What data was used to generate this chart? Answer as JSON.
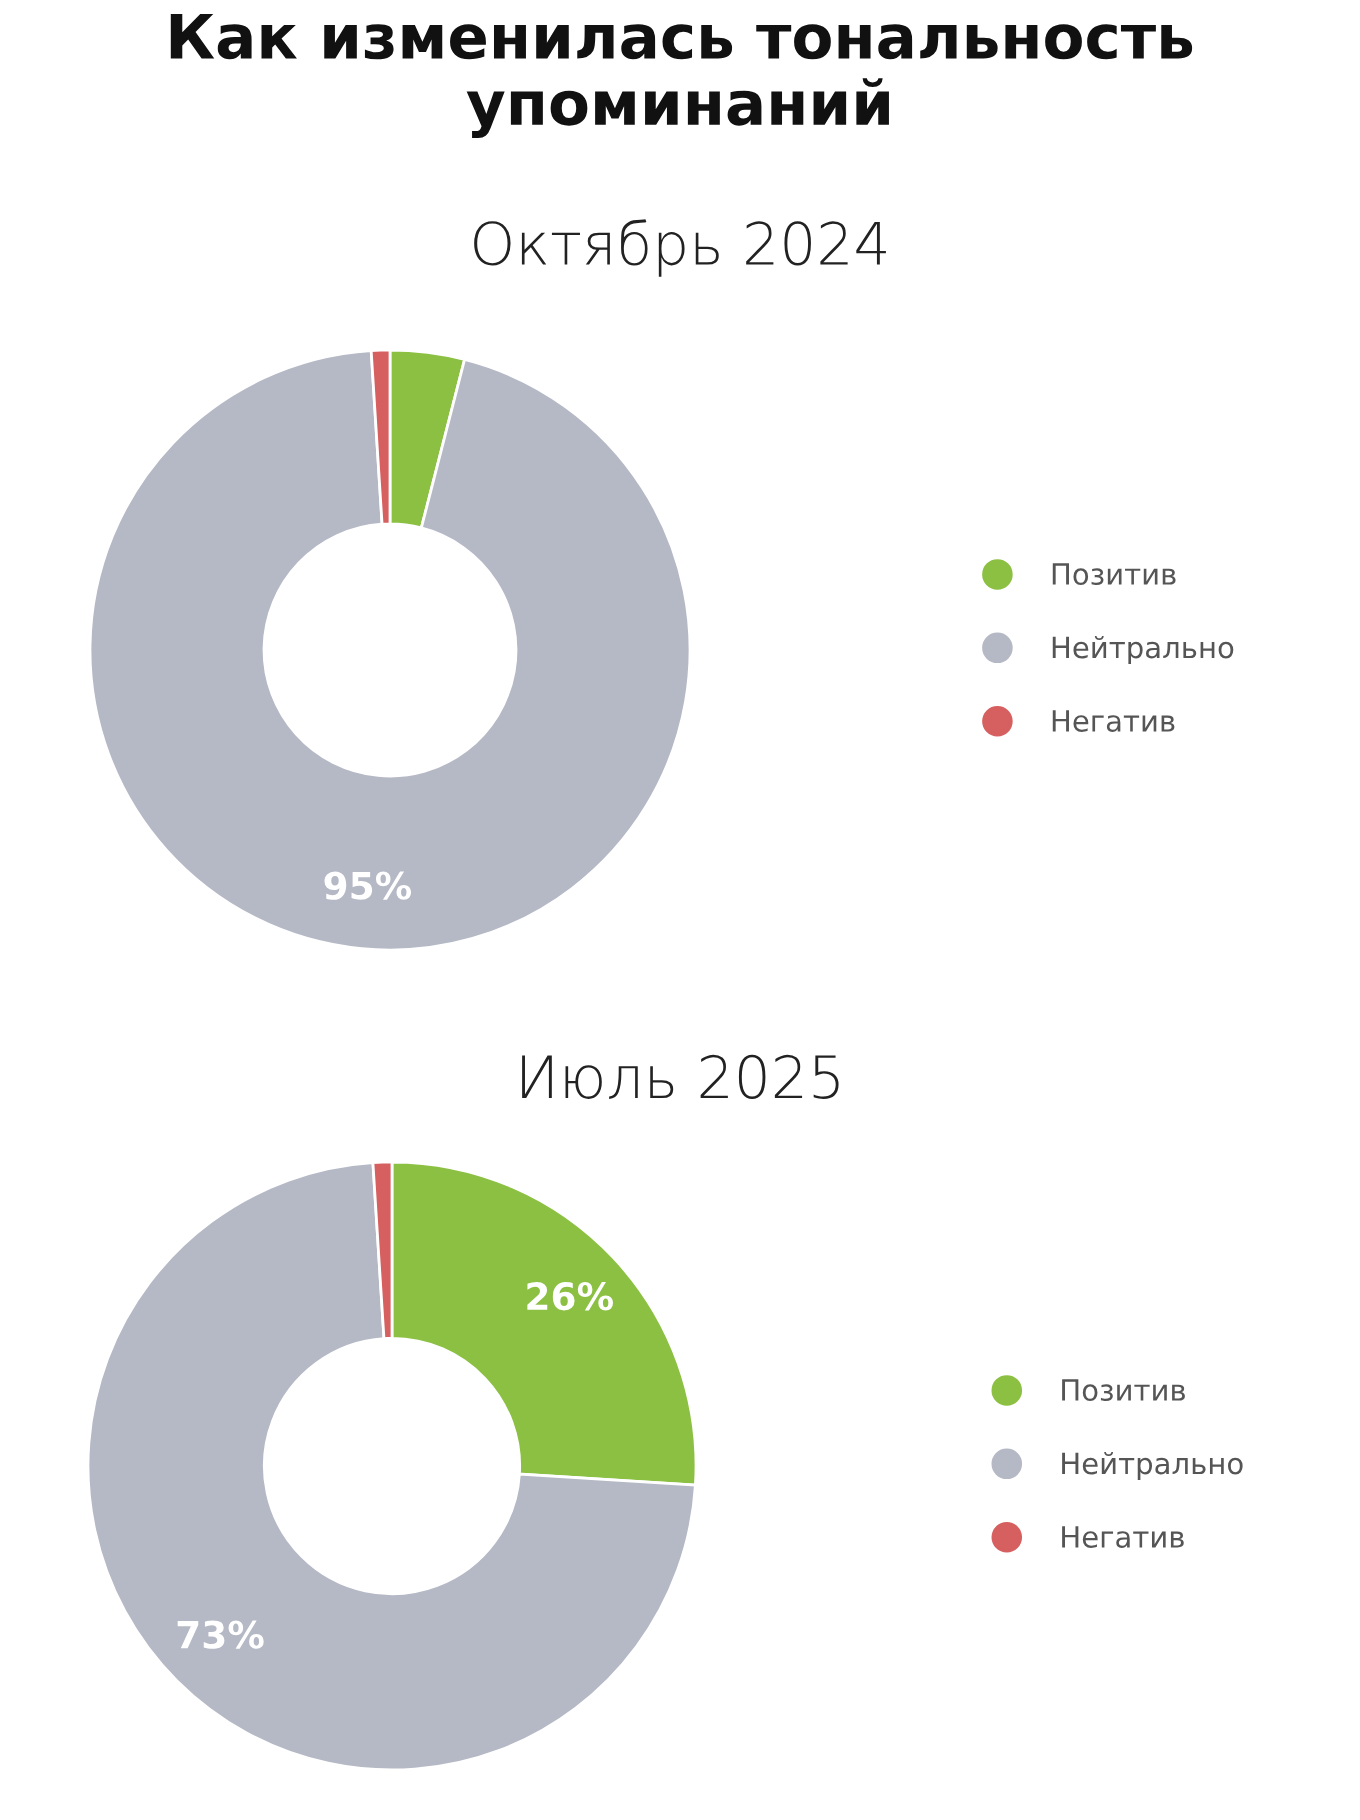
{
  "chart_data": [
    {
      "type": "donut",
      "title": "Как изменилась тональность упоминаний",
      "subtitle": "Октябрь 2024",
      "categories": [
        "Позитив",
        "Нейтрально",
        "Негатив"
      ],
      "values": [
        4,
        95,
        1
      ],
      "colors": [
        "#8cc043",
        "#b5b8c5",
        "#d65f5f"
      ],
      "value_labels": [
        null,
        "95%",
        null
      ],
      "legend": "right"
    },
    {
      "type": "donut",
      "subtitle": "Июль 2025",
      "categories": [
        "Позитив",
        "Нейтрально",
        "Негатив"
      ],
      "values": [
        26,
        73,
        1
      ],
      "colors": [
        "#8cc043",
        "#b5b8c5",
        "#d65f5f"
      ],
      "value_labels": [
        "26%",
        "73%",
        null
      ],
      "legend": "right"
    }
  ]
}
